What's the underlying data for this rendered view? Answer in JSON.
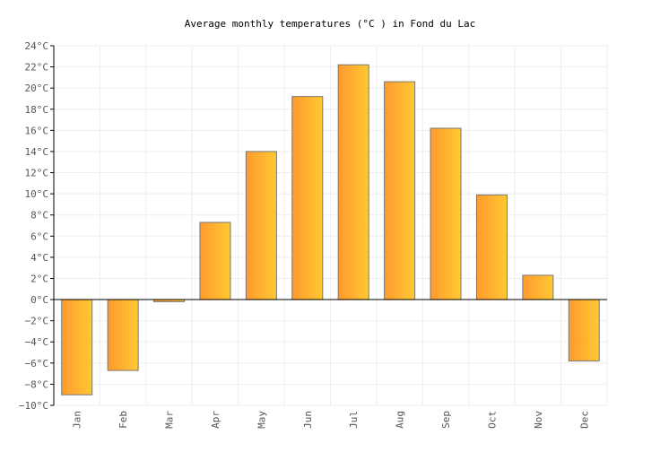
{
  "chart_data": {
    "type": "bar",
    "title": "Average monthly temperatures (°C ) in Fond du Lac",
    "xlabel": "",
    "ylabel": "",
    "categories": [
      "Jan",
      "Feb",
      "Mar",
      "Apr",
      "May",
      "Jun",
      "Jul",
      "Aug",
      "Sep",
      "Oct",
      "Nov",
      "Dec"
    ],
    "values": [
      -9.0,
      -6.7,
      -0.2,
      7.3,
      14.0,
      19.2,
      22.2,
      20.6,
      16.2,
      9.9,
      2.3,
      -5.8
    ],
    "ylim": [
      -10,
      24
    ],
    "ytick_step": 2,
    "ytick_unit": "°C",
    "grid": true,
    "legend": "none",
    "colors": {
      "bar_start": "#ff9a2e",
      "bar_end": "#ffc933",
      "bar_stroke": "#777777",
      "grid": "#eeeeee",
      "axis": "#000000"
    }
  }
}
